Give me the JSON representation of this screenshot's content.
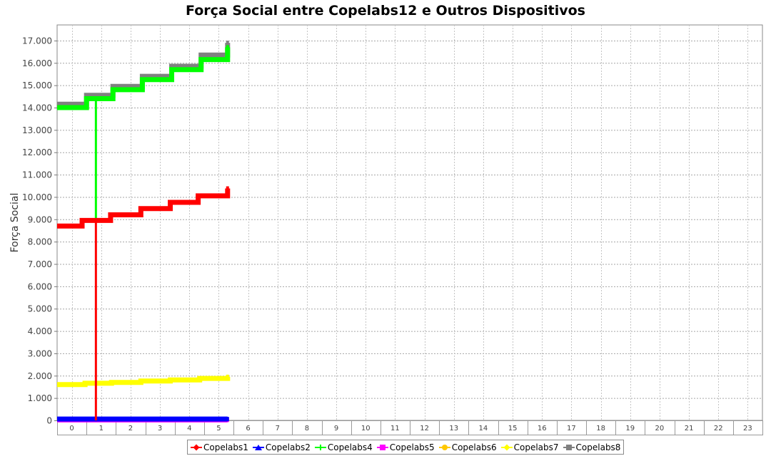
{
  "chart_data": {
    "type": "line",
    "title": "Força Social entre Copelabs12 e Outros Dispositivos",
    "xlabel": "",
    "ylabel": "Força Social",
    "categories": [
      "0",
      "1",
      "2",
      "3",
      "4",
      "5",
      "6",
      "7",
      "8",
      "9",
      "10",
      "11",
      "12",
      "13",
      "14",
      "15",
      "16",
      "17",
      "18",
      "19",
      "20",
      "21",
      "22",
      "23"
    ],
    "y_ticks": [
      "0",
      "1.000",
      "2.000",
      "3.000",
      "4.000",
      "5.000",
      "6.000",
      "7.000",
      "8.000",
      "9.000",
      "10.000",
      "11.000",
      "12.000",
      "13.000",
      "14.000",
      "15.000",
      "16.000",
      "17.000"
    ],
    "ylim": [
      0,
      17700
    ],
    "grid": true,
    "legend_position": "bottom",
    "series": [
      {
        "name": "Copelabs1",
        "color": "#ff0000",
        "marker": "diamond",
        "points": [
          [
            0,
            8700
          ],
          [
            0.85,
            8700
          ],
          [
            0.85,
            8950
          ],
          [
            1.82,
            8950
          ],
          [
            1.82,
            9200
          ],
          [
            2.85,
            9200
          ],
          [
            2.85,
            9480
          ],
          [
            3.85,
            9480
          ],
          [
            3.85,
            9760
          ],
          [
            4.8,
            9760
          ],
          [
            4.8,
            10050
          ],
          [
            5.8,
            10050
          ],
          [
            5.8,
            10380
          ]
        ],
        "drops": [
          [
            1.32,
            8950,
            0
          ]
        ]
      },
      {
        "name": "Copelabs2",
        "color": "#0000ff",
        "marker": "triangle",
        "points": [
          [
            0,
            60
          ],
          [
            1,
            60
          ],
          [
            2,
            60
          ],
          [
            3,
            60
          ],
          [
            4,
            60
          ],
          [
            5,
            60
          ],
          [
            5.8,
            60
          ]
        ]
      },
      {
        "name": "Copelabs4",
        "color": "#00ff00",
        "marker": "cross",
        "points": [
          [
            0,
            14000
          ],
          [
            1.0,
            14000
          ],
          [
            1.0,
            14400
          ],
          [
            1.9,
            14400
          ],
          [
            1.9,
            14800
          ],
          [
            2.9,
            14800
          ],
          [
            2.9,
            15250
          ],
          [
            3.9,
            15250
          ],
          [
            3.9,
            15700
          ],
          [
            4.9,
            15700
          ],
          [
            4.9,
            16150
          ],
          [
            5.8,
            16150
          ],
          [
            5.8,
            16700
          ]
        ],
        "drops": [
          [
            1.32,
            14400,
            9000
          ]
        ]
      },
      {
        "name": "Copelabs5",
        "color": "#ff00ff",
        "marker": "square",
        "points": [
          [
            0,
            20
          ],
          [
            1,
            20
          ],
          [
            2,
            20
          ],
          [
            3,
            20
          ],
          [
            4,
            20
          ],
          [
            5,
            20
          ],
          [
            5.8,
            20
          ]
        ]
      },
      {
        "name": "Copelabs6",
        "color": "#ffc800",
        "marker": "circle",
        "points": [
          [
            0,
            40
          ],
          [
            1,
            40
          ],
          [
            2,
            40
          ],
          [
            3,
            40
          ],
          [
            4,
            40
          ],
          [
            5,
            40
          ],
          [
            5.8,
            40
          ]
        ]
      },
      {
        "name": "Copelabs7",
        "color": "#ffff00",
        "marker": "diamond",
        "points": [
          [
            0,
            1600
          ],
          [
            0.95,
            1600
          ],
          [
            0.95,
            1660
          ],
          [
            1.85,
            1660
          ],
          [
            1.85,
            1700
          ],
          [
            2.85,
            1700
          ],
          [
            2.85,
            1760
          ],
          [
            3.85,
            1760
          ],
          [
            3.85,
            1810
          ],
          [
            4.85,
            1810
          ],
          [
            4.85,
            1880
          ],
          [
            5.8,
            1880
          ],
          [
            5.8,
            1950
          ]
        ]
      },
      {
        "name": "Copelabs8",
        "color": "#808080",
        "marker": "square",
        "points": [
          [
            0,
            14150
          ],
          [
            1.0,
            14150
          ],
          [
            1.0,
            14550
          ],
          [
            1.9,
            14550
          ],
          [
            1.9,
            14950
          ],
          [
            2.9,
            14950
          ],
          [
            2.9,
            15400
          ],
          [
            3.9,
            15400
          ],
          [
            3.9,
            15850
          ],
          [
            4.9,
            15850
          ],
          [
            4.9,
            16350
          ],
          [
            5.8,
            16350
          ],
          [
            5.8,
            16900
          ]
        ]
      }
    ]
  }
}
